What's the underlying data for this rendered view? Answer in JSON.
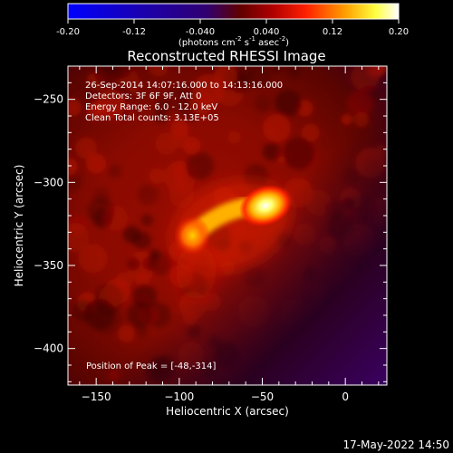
{
  "chart_data": {
    "type": "heatmap",
    "title": "Reconstructed RHESSI Image",
    "xlabel": "Heliocentric X (arcsec)",
    "ylabel": "Heliocentric Y (arcsec)",
    "xlim": [
      -167,
      25
    ],
    "ylim": [
      -422,
      -230
    ],
    "xticks": [
      -150,
      -100,
      -50,
      0
    ],
    "yticks": [
      -250,
      -300,
      -350,
      -400
    ],
    "colorbar": {
      "range": [
        -0.2,
        0.2
      ],
      "ticks": [
        "-0.20",
        "-0.12",
        "-0.040",
        "0.040",
        "0.12",
        "0.20"
      ],
      "units_main": "(photons cm",
      "units_exp1": "-2",
      "units_mid": " s",
      "units_exp2": "-1",
      "units_tail": " asec",
      "units_exp3": "-2",
      "units_close": ")"
    },
    "annotations": [
      "26-Sep-2014 14:07:16.000 to 14:13:16.000",
      "Detectors: 3F 6F 9F, Att 0",
      "Energy Range: 6.0 - 12.0 keV",
      "Clean    Total counts: 3.13E+05"
    ],
    "peak_label": "Position of Peak = [-48,-314]",
    "peak": [
      -48,
      -314
    ],
    "sources": [
      {
        "x": -48,
        "y": -314,
        "value": 0.2
      },
      {
        "x": -92,
        "y": -332,
        "value": 0.13
      }
    ],
    "background_value": 0.07,
    "timestamp": "17-May-2022 14:50"
  }
}
